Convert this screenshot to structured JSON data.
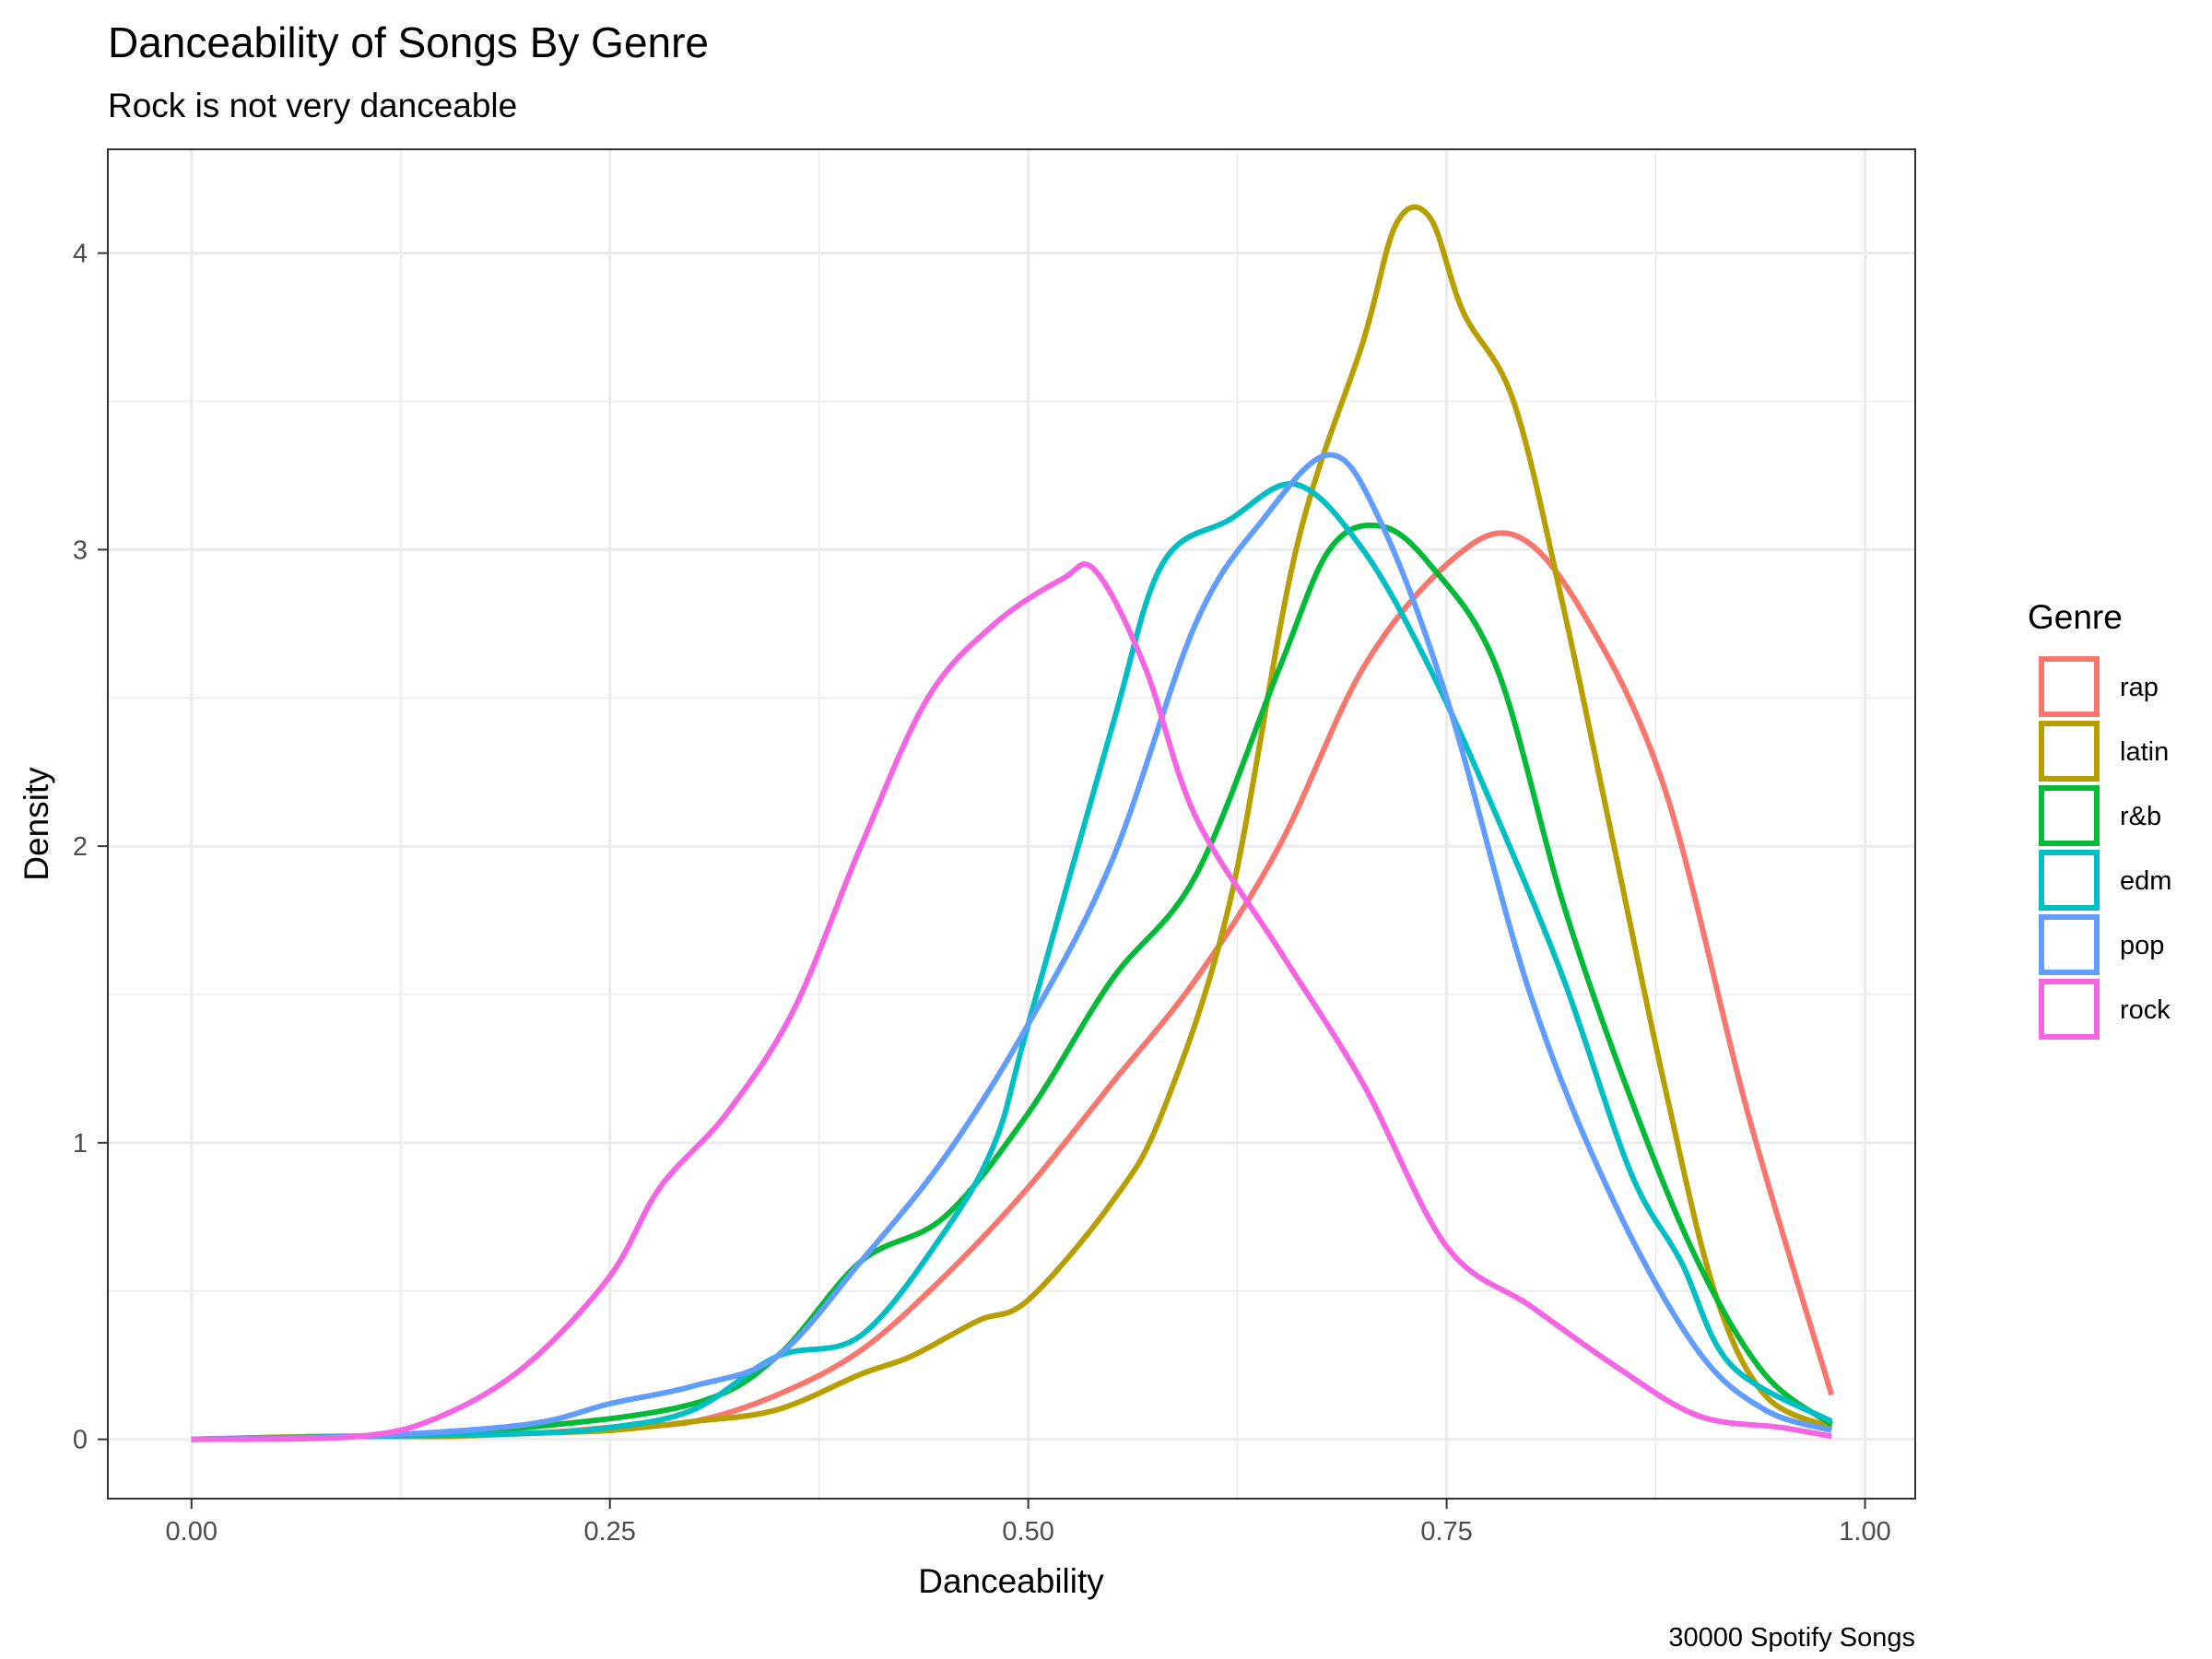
{
  "chart_data": {
    "type": "line",
    "subtype": "density",
    "title": "Danceability of Songs By Genre",
    "subtitle": "Rock is not very danceable",
    "caption": "30000 Spotify Songs",
    "xlabel": "Danceability",
    "ylabel": "Density",
    "xlim": [
      -0.05,
      1.03
    ],
    "ylim": [
      -0.2,
      4.35
    ],
    "x_ticks": [
      0.0,
      0.25,
      0.5,
      0.75,
      1.0
    ],
    "x_tick_labels": [
      "0.00",
      "0.25",
      "0.50",
      "0.75",
      "1.00"
    ],
    "y_ticks": [
      0,
      1,
      2,
      3,
      4
    ],
    "y_tick_labels": [
      "0",
      "1",
      "2",
      "3",
      "4"
    ],
    "grid": true,
    "legend": {
      "title": "Genre",
      "position": "right"
    },
    "series": [
      {
        "name": "rap",
        "color": "#F8766D",
        "x": [
          0.0,
          0.1,
          0.2,
          0.25,
          0.3,
          0.35,
          0.4,
          0.45,
          0.5,
          0.55,
          0.6,
          0.65,
          0.7,
          0.75,
          0.79,
          0.83,
          0.88,
          0.93,
          0.98
        ],
        "y": [
          0.0,
          0.01,
          0.02,
          0.04,
          0.06,
          0.15,
          0.3,
          0.55,
          0.85,
          1.2,
          1.55,
          2.0,
          2.6,
          2.95,
          3.05,
          2.8,
          2.2,
          1.1,
          0.15
        ]
      },
      {
        "name": "latin",
        "color": "#B79F00",
        "x": [
          0.0,
          0.08,
          0.15,
          0.2,
          0.25,
          0.3,
          0.35,
          0.4,
          0.43,
          0.47,
          0.5,
          0.55,
          0.58,
          0.62,
          0.66,
          0.7,
          0.72,
          0.74,
          0.76,
          0.79,
          0.82,
          0.85,
          0.88,
          0.91,
          0.94,
          0.98
        ],
        "y": [
          0.0,
          0.01,
          0.01,
          0.02,
          0.03,
          0.06,
          0.1,
          0.22,
          0.28,
          0.4,
          0.47,
          0.8,
          1.1,
          1.8,
          3.0,
          3.7,
          4.1,
          4.12,
          3.8,
          3.5,
          2.8,
          2.0,
          1.2,
          0.5,
          0.15,
          0.04
        ]
      },
      {
        "name": "r&b",
        "color": "#00BA38",
        "x": [
          0.0,
          0.1,
          0.2,
          0.3,
          0.35,
          0.4,
          0.45,
          0.5,
          0.55,
          0.6,
          0.65,
          0.68,
          0.71,
          0.74,
          0.78,
          0.82,
          0.86,
          0.9,
          0.94,
          0.98
        ],
        "y": [
          0.0,
          0.01,
          0.04,
          0.12,
          0.28,
          0.6,
          0.75,
          1.1,
          1.55,
          1.9,
          2.6,
          3.0,
          3.08,
          2.95,
          2.6,
          1.8,
          1.15,
          0.6,
          0.22,
          0.05
        ]
      },
      {
        "name": "edm",
        "color": "#00BFC4",
        "x": [
          0.0,
          0.1,
          0.2,
          0.25,
          0.3,
          0.35,
          0.4,
          0.45,
          0.48,
          0.5,
          0.55,
          0.58,
          0.62,
          0.66,
          0.7,
          0.74,
          0.78,
          0.82,
          0.86,
          0.89,
          0.92,
          0.98
        ],
        "y": [
          0.0,
          0.01,
          0.02,
          0.04,
          0.1,
          0.28,
          0.35,
          0.7,
          1.0,
          1.4,
          2.4,
          2.95,
          3.1,
          3.22,
          3.0,
          2.6,
          2.1,
          1.55,
          0.9,
          0.6,
          0.25,
          0.06
        ]
      },
      {
        "name": "pop",
        "color": "#619CFF",
        "x": [
          0.0,
          0.1,
          0.2,
          0.25,
          0.3,
          0.35,
          0.4,
          0.45,
          0.5,
          0.55,
          0.6,
          0.64,
          0.68,
          0.71,
          0.75,
          0.8,
          0.85,
          0.9,
          0.94,
          0.98
        ],
        "y": [
          0.0,
          0.01,
          0.05,
          0.12,
          0.18,
          0.28,
          0.6,
          0.95,
          1.4,
          1.95,
          2.75,
          3.1,
          3.32,
          3.1,
          2.5,
          1.5,
          0.8,
          0.3,
          0.1,
          0.03
        ]
      },
      {
        "name": "rock",
        "color": "#F564E3",
        "x": [
          0.0,
          0.1,
          0.15,
          0.2,
          0.25,
          0.28,
          0.32,
          0.36,
          0.4,
          0.44,
          0.48,
          0.52,
          0.54,
          0.57,
          0.6,
          0.65,
          0.7,
          0.75,
          0.8,
          0.85,
          0.9,
          0.95,
          0.98
        ],
        "y": [
          0.0,
          0.01,
          0.08,
          0.25,
          0.55,
          0.85,
          1.1,
          1.45,
          2.0,
          2.5,
          2.75,
          2.9,
          2.93,
          2.6,
          2.1,
          1.65,
          1.2,
          0.65,
          0.45,
          0.25,
          0.08,
          0.04,
          0.01
        ]
      }
    ]
  }
}
